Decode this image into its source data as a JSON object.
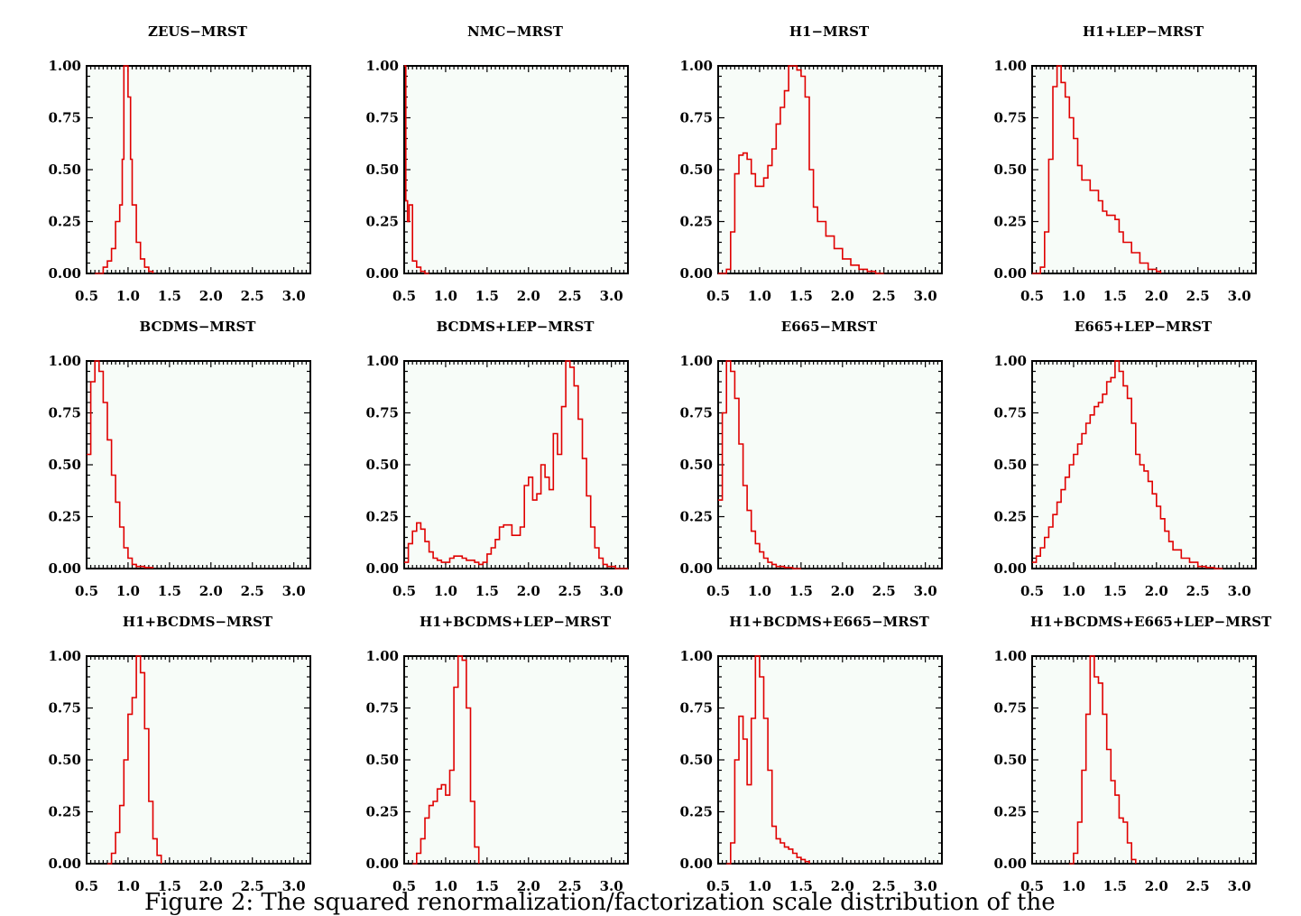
{
  "caption": "Figure 2: The squared renormalization/factorization scale distribution of the",
  "chart_data": [
    {
      "type": "line",
      "title": "ZEUS−MRST",
      "xlim": [
        0.5,
        3.2
      ],
      "ylim": [
        0,
        1
      ],
      "x": [
        0.6,
        0.7,
        0.75,
        0.8,
        0.85,
        0.9,
        0.93,
        0.95,
        0.97,
        1.0,
        1.03,
        1.05,
        1.1,
        1.15,
        1.2,
        1.25,
        1.3
      ],
      "series": [
        {
          "values": [
            0.0,
            0.03,
            0.06,
            0.12,
            0.25,
            0.33,
            0.55,
            1.0,
            1.0,
            0.85,
            0.55,
            0.33,
            0.15,
            0.07,
            0.03,
            0.01,
            0.0
          ]
        }
      ]
    },
    {
      "type": "line",
      "title": "NMC−MRST",
      "xlim": [
        0.5,
        3.2
      ],
      "ylim": [
        0,
        1
      ],
      "x": [
        0.5,
        0.52,
        0.54,
        0.56,
        0.6,
        0.65,
        0.7,
        0.75,
        0.8
      ],
      "series": [
        {
          "values": [
            1.0,
            0.35,
            0.25,
            0.33,
            0.06,
            0.03,
            0.01,
            0.0,
            0.0
          ]
        }
      ]
    },
    {
      "type": "line",
      "title": "H1−MRST",
      "xlim": [
        0.5,
        3.2
      ],
      "ylim": [
        0,
        1
      ],
      "x": [
        0.5,
        0.6,
        0.65,
        0.7,
        0.75,
        0.8,
        0.85,
        0.9,
        0.95,
        1.0,
        1.05,
        1.1,
        1.15,
        1.2,
        1.25,
        1.3,
        1.35,
        1.4,
        1.45,
        1.5,
        1.55,
        1.6,
        1.65,
        1.7,
        1.8,
        1.9,
        2.0,
        2.1,
        2.2,
        2.3,
        2.4,
        2.5
      ],
      "series": [
        {
          "values": [
            0.0,
            0.02,
            0.2,
            0.48,
            0.57,
            0.58,
            0.55,
            0.48,
            0.42,
            0.42,
            0.46,
            0.52,
            0.6,
            0.72,
            0.8,
            0.88,
            1.0,
            1.0,
            0.98,
            0.95,
            0.85,
            0.5,
            0.32,
            0.25,
            0.18,
            0.12,
            0.07,
            0.04,
            0.02,
            0.01,
            0.0,
            0.0
          ]
        }
      ]
    },
    {
      "type": "line",
      "title": "H1+LEP−MRST",
      "xlim": [
        0.5,
        3.2
      ],
      "ylim": [
        0,
        1
      ],
      "x": [
        0.5,
        0.6,
        0.65,
        0.7,
        0.75,
        0.8,
        0.85,
        0.9,
        0.95,
        1.0,
        1.05,
        1.1,
        1.2,
        1.3,
        1.35,
        1.4,
        1.45,
        1.5,
        1.55,
        1.6,
        1.7,
        1.8,
        1.9,
        2.0,
        2.05
      ],
      "series": [
        {
          "values": [
            0.0,
            0.03,
            0.2,
            0.55,
            0.9,
            1.0,
            0.92,
            0.85,
            0.75,
            0.65,
            0.52,
            0.45,
            0.4,
            0.35,
            0.3,
            0.28,
            0.28,
            0.26,
            0.2,
            0.15,
            0.1,
            0.05,
            0.02,
            0.01,
            0.0
          ]
        }
      ]
    },
    {
      "type": "line",
      "title": "BCDMS−MRST",
      "xlim": [
        0.5,
        3.2
      ],
      "ylim": [
        0,
        1
      ],
      "x": [
        0.5,
        0.55,
        0.6,
        0.65,
        0.7,
        0.75,
        0.8,
        0.85,
        0.9,
        0.95,
        1.0,
        1.05,
        1.1,
        1.2,
        1.3
      ],
      "series": [
        {
          "values": [
            0.55,
            0.9,
            1.0,
            0.95,
            0.8,
            0.62,
            0.45,
            0.32,
            0.2,
            0.1,
            0.05,
            0.02,
            0.01,
            0.005,
            0.0
          ]
        }
      ]
    },
    {
      "type": "line",
      "title": "BCDMS+LEP−MRST",
      "xlim": [
        0.5,
        3.2
      ],
      "ylim": [
        0,
        1
      ],
      "x": [
        0.5,
        0.55,
        0.6,
        0.65,
        0.7,
        0.75,
        0.8,
        0.85,
        0.9,
        0.95,
        1.0,
        1.05,
        1.1,
        1.15,
        1.2,
        1.25,
        1.3,
        1.35,
        1.4,
        1.45,
        1.5,
        1.55,
        1.6,
        1.65,
        1.7,
        1.75,
        1.8,
        1.85,
        1.9,
        1.95,
        2.0,
        2.05,
        2.1,
        2.15,
        2.2,
        2.25,
        2.3,
        2.35,
        2.4,
        2.45,
        2.5,
        2.55,
        2.6,
        2.65,
        2.7,
        2.75,
        2.8,
        2.85,
        2.9,
        2.95,
        3.0,
        3.05,
        3.1,
        3.15,
        3.2
      ],
      "series": [
        {
          "values": [
            0.03,
            0.12,
            0.18,
            0.22,
            0.19,
            0.13,
            0.08,
            0.05,
            0.04,
            0.03,
            0.03,
            0.05,
            0.06,
            0.06,
            0.05,
            0.04,
            0.04,
            0.03,
            0.02,
            0.03,
            0.07,
            0.1,
            0.14,
            0.2,
            0.21,
            0.21,
            0.16,
            0.16,
            0.2,
            0.4,
            0.44,
            0.33,
            0.36,
            0.5,
            0.44,
            0.38,
            0.65,
            0.55,
            0.78,
            1.0,
            0.97,
            0.88,
            0.72,
            0.53,
            0.35,
            0.2,
            0.1,
            0.05,
            0.02,
            0.01,
            0.01,
            0.0,
            0.0,
            0.0,
            0.0
          ]
        }
      ]
    },
    {
      "type": "line",
      "title": "E665−MRST",
      "xlim": [
        0.5,
        3.2
      ],
      "ylim": [
        0,
        1
      ],
      "x": [
        0.5,
        0.55,
        0.6,
        0.65,
        0.7,
        0.75,
        0.8,
        0.85,
        0.9,
        0.95,
        1.0,
        1.05,
        1.1,
        1.15,
        1.2,
        1.3,
        1.4,
        1.5
      ],
      "series": [
        {
          "values": [
            0.33,
            0.75,
            1.0,
            0.95,
            0.82,
            0.6,
            0.4,
            0.28,
            0.18,
            0.12,
            0.08,
            0.05,
            0.03,
            0.02,
            0.01,
            0.005,
            0.0,
            0.0
          ]
        }
      ]
    },
    {
      "type": "line",
      "title": "E665+LEP−MRST",
      "xlim": [
        0.5,
        3.2
      ],
      "ylim": [
        0,
        1
      ],
      "x": [
        0.5,
        0.55,
        0.6,
        0.65,
        0.7,
        0.75,
        0.8,
        0.85,
        0.9,
        0.95,
        1.0,
        1.05,
        1.1,
        1.15,
        1.2,
        1.25,
        1.3,
        1.35,
        1.4,
        1.45,
        1.5,
        1.55,
        1.6,
        1.65,
        1.7,
        1.75,
        1.8,
        1.85,
        1.9,
        1.95,
        2.0,
        2.05,
        2.1,
        2.15,
        2.2,
        2.3,
        2.4,
        2.5,
        2.6,
        2.7,
        2.8
      ],
      "series": [
        {
          "values": [
            0.03,
            0.06,
            0.1,
            0.15,
            0.2,
            0.26,
            0.32,
            0.38,
            0.44,
            0.5,
            0.55,
            0.6,
            0.65,
            0.7,
            0.74,
            0.78,
            0.8,
            0.84,
            0.9,
            0.92,
            1.0,
            0.95,
            0.88,
            0.82,
            0.7,
            0.55,
            0.5,
            0.47,
            0.42,
            0.36,
            0.3,
            0.24,
            0.18,
            0.13,
            0.09,
            0.05,
            0.03,
            0.01,
            0.005,
            0.0,
            0.0
          ]
        }
      ]
    },
    {
      "type": "line",
      "title": "H1+BCDMS−MRST",
      "xlim": [
        0.5,
        3.2
      ],
      "ylim": [
        0,
        1
      ],
      "x": [
        0.75,
        0.8,
        0.85,
        0.9,
        0.95,
        1.0,
        1.05,
        1.1,
        1.15,
        1.2,
        1.25,
        1.3,
        1.35,
        1.4
      ],
      "series": [
        {
          "values": [
            0.0,
            0.05,
            0.15,
            0.28,
            0.5,
            0.72,
            0.8,
            1.0,
            0.92,
            0.65,
            0.3,
            0.12,
            0.04,
            0.0
          ]
        }
      ]
    },
    {
      "type": "line",
      "title": "H1+BCDMS+LEP−MRST",
      "xlim": [
        0.5,
        3.2
      ],
      "ylim": [
        0,
        1
      ],
      "x": [
        0.6,
        0.65,
        0.7,
        0.75,
        0.8,
        0.85,
        0.9,
        0.95,
        1.0,
        1.05,
        1.1,
        1.15,
        1.2,
        1.25,
        1.3,
        1.35,
        1.4
      ],
      "series": [
        {
          "values": [
            0.0,
            0.05,
            0.12,
            0.22,
            0.28,
            0.3,
            0.36,
            0.38,
            0.33,
            0.45,
            0.85,
            1.0,
            0.98,
            0.75,
            0.3,
            0.08,
            0.0
          ]
        }
      ]
    },
    {
      "type": "line",
      "title": "H1+BCDMS+E665−MRST",
      "xlim": [
        0.5,
        3.2
      ],
      "ylim": [
        0,
        1
      ],
      "x": [
        0.6,
        0.65,
        0.7,
        0.75,
        0.8,
        0.85,
        0.9,
        0.95,
        1.0,
        1.05,
        1.1,
        1.15,
        1.2,
        1.25,
        1.3,
        1.35,
        1.4,
        1.45,
        1.5,
        1.55,
        1.6
      ],
      "series": [
        {
          "values": [
            0.0,
            0.1,
            0.5,
            0.71,
            0.6,
            0.38,
            0.7,
            1.0,
            0.9,
            0.7,
            0.45,
            0.18,
            0.12,
            0.1,
            0.08,
            0.07,
            0.05,
            0.03,
            0.02,
            0.01,
            0.0
          ]
        }
      ]
    },
    {
      "type": "line",
      "title": "H1+BCDMS+E665+LEP−MRST",
      "xlim": [
        0.5,
        3.2
      ],
      "ylim": [
        0,
        1
      ],
      "x": [
        0.95,
        1.0,
        1.05,
        1.1,
        1.15,
        1.2,
        1.25,
        1.3,
        1.35,
        1.4,
        1.45,
        1.5,
        1.55,
        1.6,
        1.65,
        1.7,
        1.75
      ],
      "series": [
        {
          "values": [
            0.0,
            0.05,
            0.2,
            0.45,
            0.72,
            1.0,
            0.9,
            0.87,
            0.72,
            0.55,
            0.4,
            0.33,
            0.22,
            0.2,
            0.1,
            0.02,
            0.0
          ]
        }
      ]
    }
  ]
}
